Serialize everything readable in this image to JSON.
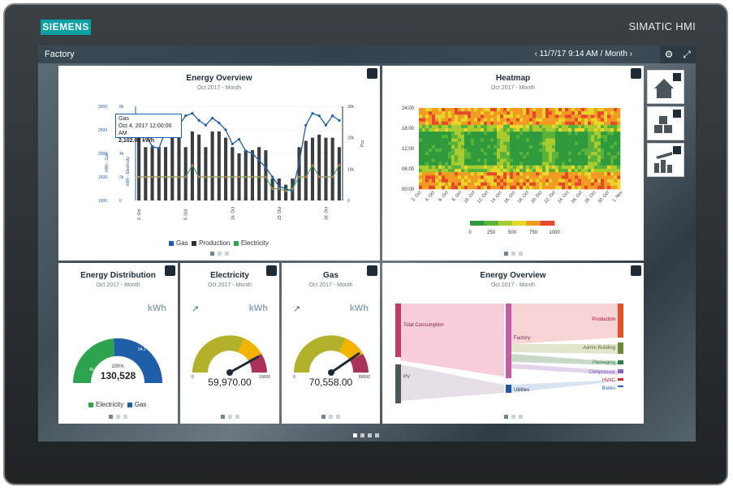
{
  "brand": "SIEMENS",
  "model": "SIMATIC HMI",
  "topbar": {
    "title": "Factory",
    "date": "‹  11/7/17 9:14 AM  /  Month  ›"
  },
  "colors": {
    "gas": "#1f5ea8",
    "production": "#2f3236",
    "electricity": "#2ea44f"
  },
  "cards": {
    "energy_overview": {
      "title": "Energy Overview",
      "subtitle": "Oct 2017 - Month",
      "tooltip": {
        "line1": "Gas",
        "line2": "Oct 4, 2017 12:00:00 AM",
        "line3": "2,102.00 kWh"
      },
      "legend": [
        "Gas",
        "Production",
        "Electricity"
      ]
    },
    "heatmap": {
      "title": "Heatmap",
      "subtitle": "Oct 2017 - Month"
    },
    "distribution": {
      "title": "Energy Distribution",
      "subtitle": "Oct 2017 - Month",
      "unit": "kWh",
      "left_pct": "45.9 %",
      "right_pct": "54.1 %",
      "center_pct": "100%",
      "value": "130,528",
      "legend": [
        "Electricity",
        "Gas"
      ]
    },
    "electricity": {
      "title": "Electricity",
      "subtitle": "Oct 2017 - Month",
      "unit": "kWh",
      "min": "0",
      "max": "10000",
      "value": "59,970.00"
    },
    "gas": {
      "title": "Gas",
      "subtitle": "Oct 2017 - Month",
      "unit": "kWh",
      "min": "0",
      "max": "80000",
      "value": "70,558.00"
    },
    "sankey": {
      "title": "Energy Overview",
      "subtitle": "Oct 2017 - Month",
      "sources": [
        "Total Consumption",
        "PV"
      ],
      "middle": [
        "Factory",
        "Utilities"
      ],
      "targets": [
        "Production",
        "Admin Building",
        "Packaging",
        "Compressor",
        "HVAC",
        "Boiles"
      ]
    }
  },
  "chart_data": [
    {
      "type": "bar",
      "title": "Energy Overview",
      "ylabel_left": "kWh - Gas",
      "ylabel_left2": "kWh - Electricity",
      "ylabel_right": "Pcs",
      "yticks_left": [
        "1000",
        "1500",
        "2000",
        "2500",
        "3000"
      ],
      "yticks_left2": [
        "0",
        "2k",
        "4k",
        "6k",
        "8k"
      ],
      "yticks_right": [
        "0",
        "10k",
        "20k",
        "30k"
      ],
      "categories": [
        "1",
        "2",
        "3",
        "4",
        "5",
        "6",
        "7",
        "8",
        "9",
        "10",
        "11",
        "12",
        "13",
        "14",
        "15",
        "16",
        "17",
        "18",
        "19",
        "20",
        "21",
        "22",
        "23",
        "24",
        "25",
        "26",
        "27",
        "28",
        "29",
        "30",
        "31"
      ],
      "xticks": [
        "2. Oct",
        "9. Oct",
        "16. Oct",
        "23. Oct",
        "30. Oct"
      ],
      "series": [
        {
          "name": "Gas",
          "values": [
            2600,
            2400,
            2150,
            2102,
            2500,
            2700,
            2600,
            2800,
            2850,
            2700,
            2600,
            2750,
            2650,
            2500,
            2200,
            2300,
            2050,
            2000,
            1850,
            1700,
            1500,
            1300,
            1250,
            1200,
            1800,
            2600,
            2850,
            2800,
            2600,
            2800,
            2700
          ]
        },
        {
          "name": "Production",
          "values": [
            20,
            17,
            17,
            17,
            17,
            20,
            21,
            17,
            22,
            21,
            17,
            22,
            22,
            20,
            17,
            15,
            16,
            16,
            17,
            16,
            7,
            7,
            5,
            7,
            17,
            19,
            20,
            21,
            20,
            20,
            17
          ]
        },
        {
          "name": "Electricity",
          "values": [
            2,
            2,
            2,
            2,
            2,
            2,
            2,
            2,
            3,
            2,
            2,
            2,
            2,
            2,
            2,
            2,
            2,
            2,
            2,
            2,
            1,
            1,
            0.8,
            1,
            2,
            2,
            3,
            2,
            2,
            2,
            3
          ]
        }
      ]
    },
    {
      "type": "heatmap",
      "title": "Heatmap",
      "yticks": [
        "00:00",
        "06:00",
        "12:00",
        "18:00",
        "24:00"
      ],
      "xticks": [
        "2. Oct",
        "4. Oct",
        "6. Oct",
        "8. Oct",
        "10. Oct",
        "12. Oct",
        "14. Oct",
        "16. Oct",
        "18. Oct",
        "20. Oct",
        "22. Oct",
        "24. Oct",
        "26. Oct",
        "28. Oct",
        "30. Oct",
        "1. Nov"
      ],
      "colorscale": [
        "0",
        "250",
        "500",
        "750",
        "1000"
      ]
    }
  ]
}
